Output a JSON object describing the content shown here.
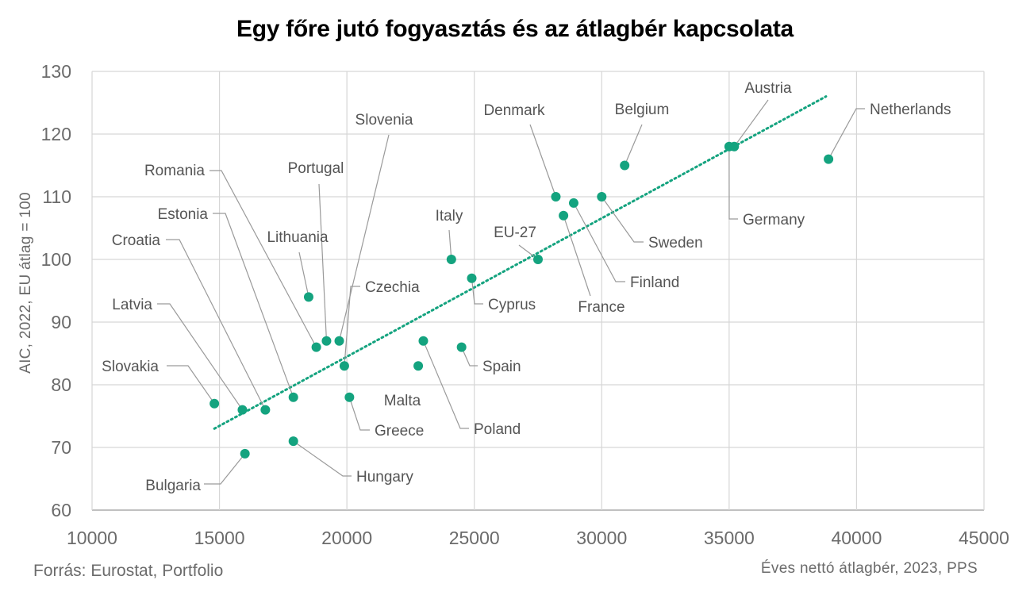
{
  "chart_data": {
    "type": "scatter",
    "title": "Egy főre jutó fogyasztás és az átlagbér kapcsolata",
    "xlabel": "Éves nettó átlagbér, 2023, PPS",
    "ylabel": "AIC, 2022, EU átlag = 100",
    "xlim": [
      10000,
      45000
    ],
    "ylim": [
      60,
      130
    ],
    "xticks": [
      "10000",
      "15000",
      "20000",
      "25000",
      "30000",
      "35000",
      "40000",
      "45000"
    ],
    "yticks": [
      "60",
      "70",
      "80",
      "90",
      "100",
      "110",
      "120",
      "130"
    ],
    "grid": true,
    "point_color": "#14a37f",
    "trendline": {
      "color": "#14a37f",
      "style": "dotted",
      "x": [
        14800,
        38800
      ],
      "y": [
        73,
        126
      ]
    },
    "points": [
      {
        "label": "Slovakia",
        "x": 14800,
        "y": 77
      },
      {
        "label": "Latvia",
        "x": 15900,
        "y": 76
      },
      {
        "label": "Bulgaria",
        "x": 16000,
        "y": 69
      },
      {
        "label": "Croatia",
        "x": 16800,
        "y": 76
      },
      {
        "label": "Estonia",
        "x": 17900,
        "y": 78
      },
      {
        "label": "Hungary",
        "x": 17900,
        "y": 71
      },
      {
        "label": "Lithuania",
        "x": 18500,
        "y": 94
      },
      {
        "label": "Romania",
        "x": 18800,
        "y": 86
      },
      {
        "label": "Portugal",
        "x": 19200,
        "y": 87
      },
      {
        "label": "Slovenia",
        "x": 19700,
        "y": 87
      },
      {
        "label": "Czechia",
        "x": 19900,
        "y": 83
      },
      {
        "label": "Greece",
        "x": 20100,
        "y": 78
      },
      {
        "label": "Malta",
        "x": 22800,
        "y": 83
      },
      {
        "label": "Poland",
        "x": 23000,
        "y": 87
      },
      {
        "label": "Italy",
        "x": 24100,
        "y": 100
      },
      {
        "label": "Spain",
        "x": 24500,
        "y": 86
      },
      {
        "label": "Cyprus",
        "x": 24900,
        "y": 97
      },
      {
        "label": "EU-27",
        "x": 27500,
        "y": 100
      },
      {
        "label": "Denmark",
        "x": 28200,
        "y": 110
      },
      {
        "label": "France",
        "x": 28500,
        "y": 107
      },
      {
        "label": "Finland",
        "x": 28900,
        "y": 109
      },
      {
        "label": "Sweden",
        "x": 30000,
        "y": 110
      },
      {
        "label": "Belgium",
        "x": 30900,
        "y": 115
      },
      {
        "label": "Germany",
        "x": 35000,
        "y": 118
      },
      {
        "label": "Austria",
        "x": 35200,
        "y": 118
      },
      {
        "label": "Netherlands",
        "x": 38900,
        "y": 116
      }
    ]
  },
  "source": "Forrás: Eurostat, Portfolio"
}
